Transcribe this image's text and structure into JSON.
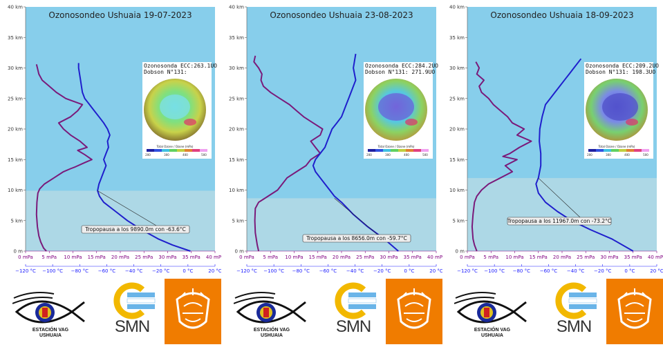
{
  "chart_data": [
    {
      "type": "line",
      "title": "Ozonosondeo Ushuaia 19-07-2023",
      "y_axis": {
        "unit": "km",
        "range": [
          0,
          40
        ],
        "ticks": [
          "0 m",
          "5 km",
          "10 km",
          "15 km",
          "20 km",
          "25 km",
          "30 km",
          "35 km",
          "40 km"
        ]
      },
      "x_axis_pressure": {
        "range": [
          0,
          40
        ],
        "ticks": [
          "0 mPa",
          "5 mPa",
          "10 mPa",
          "15 mPa",
          "20 mPa",
          "25 mPa",
          "30 mPa",
          "35 mPa",
          "40 mPa"
        ]
      },
      "x_axis_temperature": {
        "range": [
          -120,
          20
        ],
        "ticks": [
          "−120 °C",
          "−100 °C",
          "−80 °C",
          "−60 °C",
          "−40 °C",
          "−20 °C",
          "0 °C",
          "20 °C"
        ]
      },
      "tropopause_km": 9.89,
      "tropopause_label": "Tropopausa a los 9890.0m con -63.6°C",
      "inset": {
        "line1": "Ozonosonda ECC:263.1UO",
        "line2": "Dobson N°131:"
      },
      "series": [
        {
          "color": "#7a1a7a",
          "x": [
            4.4,
            3.8,
            3.2,
            2.8,
            2.5,
            2.3,
            2.4,
            2.6,
            3.0,
            4.0,
            6.0,
            8.0,
            9.5,
            10.5,
            12.5,
            14.0,
            12.5,
            11.0,
            13.0,
            11.5,
            9.5,
            8.0,
            7.0,
            9.5,
            11.0,
            12.0,
            8.5,
            6.5,
            5.0,
            3.5,
            2.8,
            2.5,
            2.3
          ],
          "y": [
            0,
            0.5,
            1.5,
            2.5,
            4,
            6,
            8,
            9.5,
            10.2,
            11,
            12,
            13,
            13.5,
            13.8,
            14.5,
            15,
            15.8,
            16.5,
            17,
            18,
            19,
            20,
            21,
            22,
            23,
            24,
            25,
            26,
            27,
            28,
            29,
            30,
            30.6
          ]
        },
        {
          "color": "#1f1fcc",
          "x": [
            34.8,
            31,
            28,
            24.5,
            21.5,
            19,
            16.5,
            15.6,
            15.2,
            15.5,
            16,
            16.5,
            17,
            16.5,
            17,
            17.5,
            17.3,
            17.8,
            17.3,
            16.5,
            15.5,
            14.5,
            13.5,
            12.5,
            12,
            11.8,
            11.6,
            11.4,
            11.2,
            11.2
          ],
          "y": [
            0,
            1,
            2,
            3.5,
            5,
            6.5,
            8,
            9,
            9.9,
            11,
            12,
            13,
            14,
            15,
            16,
            17,
            18,
            19,
            20,
            21,
            22,
            23,
            24,
            25,
            26,
            27,
            28,
            29,
            30,
            30.8
          ]
        }
      ]
    },
    {
      "type": "line",
      "title": "Ozonosondeo Ushuaia 23-08-2023",
      "y_axis": {
        "unit": "km",
        "range": [
          0,
          40
        ],
        "ticks": [
          "0 m",
          "5 km",
          "10 km",
          "15 km",
          "20 km",
          "25 km",
          "30 km",
          "35 km",
          "40 km"
        ]
      },
      "x_axis_pressure": {
        "range": [
          0,
          40
        ],
        "ticks": [
          "0 mPa",
          "5 mPa",
          "10 mPa",
          "15 mPa",
          "20 mPa",
          "25 mPa",
          "30 mPa",
          "35 mPa",
          "40 mPa"
        ]
      },
      "x_axis_temperature": {
        "range": [
          -120,
          20
        ],
        "ticks": [
          "−120 °C",
          "−100 °C",
          "−80 °C",
          "−60 °C",
          "−40 °C",
          "−20 °C",
          "0 °C",
          "20 °C"
        ]
      },
      "tropopause_km": 8.656,
      "tropopause_label": "Tropopausa a los 8656.0m con -59.7°C",
      "inset": {
        "line1": "Ozonosonda ECC:284.2UO",
        "line2": "Dobson N°131:   271.9UO"
      },
      "series": [
        {
          "color": "#7a1a7a",
          "x": [
            2.5,
            2.2,
            2.0,
            1.8,
            1.7,
            1.8,
            2.5,
            4.5,
            6.5,
            7.5,
            8.5,
            10.5,
            12.5,
            13.5,
            15.5,
            14.5,
            13.5,
            15.5,
            16.0,
            14.0,
            12.0,
            10.5,
            9.0,
            7.0,
            5.0,
            3.5,
            3.0,
            3.2,
            2.5,
            1.5,
            1.8
          ],
          "y": [
            0,
            1,
            2,
            3,
            5,
            7,
            8,
            9,
            10,
            11,
            12,
            13,
            14,
            15,
            16,
            17,
            18,
            19,
            20,
            21,
            22,
            23,
            24,
            25,
            26,
            27,
            28,
            29,
            30,
            31,
            32
          ]
        },
        {
          "color": "#1f1fcc",
          "x": [
            32,
            29,
            25.5,
            22.5,
            20,
            18.5,
            17.5,
            16.5,
            15.5,
            14.5,
            14.0,
            14.5,
            15.5,
            16.5,
            17.0,
            17.5,
            18.0,
            19.0,
            20.0,
            20.5,
            21.0,
            21.5,
            22.0,
            22.5,
            23.0,
            22.5,
            23.0
          ],
          "y": [
            0,
            2,
            4,
            6,
            8,
            9,
            10,
            11,
            12,
            13,
            14,
            15,
            16,
            17,
            18,
            19,
            20,
            21,
            22,
            23,
            24,
            25,
            26,
            27,
            28,
            30,
            32.3
          ]
        }
      ]
    },
    {
      "type": "line",
      "title": "Ozonosondeo Ushuaia 18-09-2023",
      "y_axis": {
        "unit": "km",
        "range": [
          0,
          40
        ],
        "ticks": [
          "0 m",
          "5 km",
          "10 km",
          "15 km",
          "20 km",
          "25 km",
          "30 km",
          "35 km",
          "40 km"
        ]
      },
      "x_axis_pressure": {
        "range": [
          0,
          40
        ],
        "ticks": [
          "0 mPa",
          "5 mPa",
          "10 mPa",
          "15 mPa",
          "20 mPa",
          "25 mPa",
          "30 mPa",
          "35 mPa",
          "40 mPa"
        ]
      },
      "x_axis_temperature": {
        "range": [
          -120,
          20
        ],
        "ticks": [
          "−120 °C",
          "−100 °C",
          "−80 °C",
          "−60 °C",
          "−40 °C",
          "−20 °C",
          "0 °C",
          "20 °C"
        ]
      },
      "tropopause_km": 11.967,
      "tropopause_label": "Tropopausa a los 11967.0m con -73.2°C",
      "inset": {
        "line1": "Ozonosonda ECC:209.2UO",
        "line2": "Dobson N°131:   198.3UO"
      },
      "series": [
        {
          "color": "#7a1a7a",
          "x": [
            2.0,
            1.5,
            1.2,
            1.0,
            1.2,
            1.5,
            2.0,
            3.0,
            4.5,
            7.0,
            9.5,
            8.0,
            10.5,
            7.5,
            9.0,
            11.0,
            13.5,
            10.5,
            12.0,
            9.5,
            8.5,
            7.0,
            5.5,
            4.5,
            3.0,
            2.5,
            3.5,
            2.0,
            2.5,
            1.8
          ],
          "y": [
            0,
            1,
            2,
            4,
            6,
            8,
            9,
            10,
            11,
            12,
            13,
            14,
            15,
            15.5,
            16,
            17,
            18,
            19,
            20,
            21,
            22,
            23,
            24,
            25,
            26,
            27,
            28,
            29,
            30,
            31
          ]
        },
        {
          "color": "#1f1fcc",
          "x": [
            35,
            30.5,
            26,
            22,
            19,
            16.5,
            15,
            14.5,
            15,
            15.5,
            15.5,
            15.2,
            15.3,
            15.8,
            16.5,
            17.5,
            18.5,
            19.5,
            20.5,
            21.5,
            22.5,
            24
          ],
          "y": [
            0,
            2,
            3.5,
            5,
            6.5,
            8,
            9.5,
            11,
            12,
            14,
            16,
            18,
            20,
            22,
            24,
            25,
            26,
            27,
            28,
            29,
            30,
            31.5
          ]
        }
      ]
    }
  ],
  "logos": {
    "vag_line1": "ESTACIÓN VAG",
    "vag_line2": "USHUAIA",
    "smn": "SMN"
  },
  "inset_legend": "Total Ozone / Ozone (mPa)",
  "inset_ticks": [
    "200",
    "300",
    "400",
    "500"
  ],
  "colors": {
    "sky": "#87ceeb",
    "troposphere": "#add8e6",
    "ozone": "#7a1a7a",
    "temperature": "#1f1fcc",
    "crest": "#f07c00"
  }
}
